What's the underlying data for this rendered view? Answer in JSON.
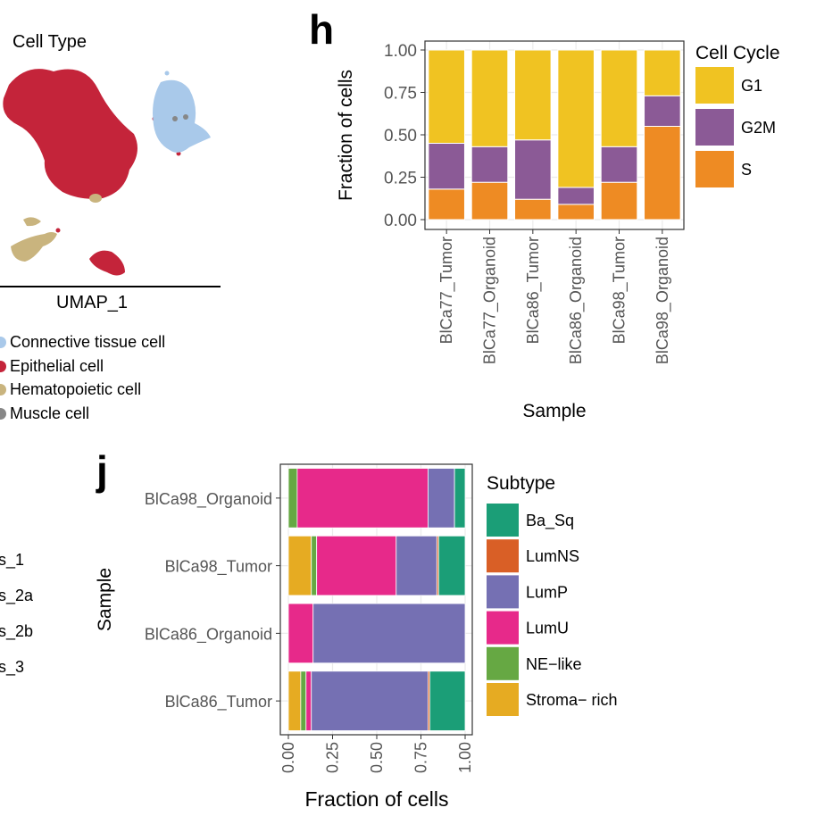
{
  "umap": {
    "legend_title": "Cell Type",
    "axis_label": "UMAP_1",
    "legend": [
      {
        "label": "Connective tissue cell",
        "color": "#a9c9ea"
      },
      {
        "label": "Epithelial cell",
        "color": "#c4243a"
      },
      {
        "label": "Hematopoietic cell",
        "color": "#c9b47e"
      },
      {
        "label": "Muscle cell",
        "color": "#878787"
      }
    ],
    "colors": {
      "connective": "#a9c9ea",
      "epithelial": "#c4243a",
      "hematopoietic": "#c9b47e",
      "muscle": "#878787"
    }
  },
  "left_fragments": [
    "s_1",
    "s_2a",
    "s_2b",
    "s_3"
  ],
  "chart_data": [
    {
      "id": "h",
      "panel_letter": "h",
      "type": "bar",
      "orientation": "vertical",
      "stacked": true,
      "title": "",
      "xlabel": "Sample",
      "ylabel": "Fraction of cells",
      "ylim": [
        0,
        1
      ],
      "yticks": [
        "0.00",
        "0.25",
        "0.50",
        "0.75",
        "1.00"
      ],
      "categories": [
        "BlCa77_Tumor",
        "BlCa77_Organoid",
        "BlCa86_Tumor",
        "BlCa86_Organoid",
        "BlCa98_Tumor",
        "BlCa98_Organoid"
      ],
      "legend_title": "Cell Cycle",
      "series": [
        {
          "name": "S",
          "color": "#ee8b23",
          "values": [
            0.18,
            0.22,
            0.12,
            0.09,
            0.22,
            0.55
          ]
        },
        {
          "name": "G2M",
          "color": "#8b5a96",
          "values": [
            0.27,
            0.21,
            0.35,
            0.1,
            0.21,
            0.18
          ]
        },
        {
          "name": "G1",
          "color": "#f0c322",
          "values": [
            0.55,
            0.57,
            0.53,
            0.81,
            0.57,
            0.27
          ]
        }
      ],
      "legend_order": [
        "G1",
        "G2M",
        "S"
      ]
    },
    {
      "id": "j",
      "panel_letter": "j",
      "type": "bar",
      "orientation": "horizontal",
      "stacked": true,
      "title": "",
      "xlabel": "Fraction of cells",
      "ylabel": "Sample",
      "xlim": [
        0,
        1
      ],
      "xticks": [
        "0.00",
        "0.25",
        "0.50",
        "0.75",
        "1.00"
      ],
      "categories": [
        "BlCa98_Organoid",
        "BlCa98_Tumor",
        "BlCa86_Organoid",
        "BlCa86_Tumor"
      ],
      "legend_title": "Subtype",
      "series": [
        {
          "name": "Stroma− rich",
          "color": "#e6ab22",
          "values": [
            0.0,
            0.13,
            0.0,
            0.07
          ]
        },
        {
          "name": "NE−like",
          "color": "#66a843",
          "values": [
            0.05,
            0.03,
            0.0,
            0.03
          ]
        },
        {
          "name": "LumU",
          "color": "#e7298a",
          "values": [
            0.74,
            0.45,
            0.14,
            0.03
          ]
        },
        {
          "name": "LumP",
          "color": "#7570b3",
          "values": [
            0.15,
            0.23,
            0.86,
            0.66
          ]
        },
        {
          "name": "LumNS",
          "color": "#d95f26",
          "values": [
            0.0,
            0.01,
            0.0,
            0.01
          ]
        },
        {
          "name": "Ba_Sq",
          "color": "#1b9e77",
          "values": [
            0.06,
            0.15,
            0.0,
            0.2
          ]
        }
      ],
      "legend_order": [
        "Ba_Sq",
        "LumNS",
        "LumP",
        "LumU",
        "NE−like",
        "Stroma− rich"
      ]
    }
  ]
}
